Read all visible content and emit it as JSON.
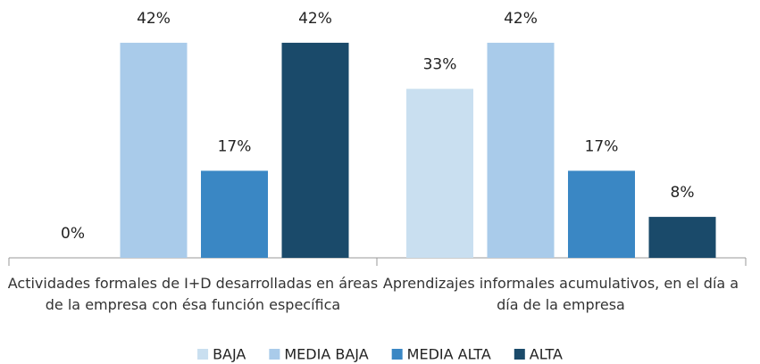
{
  "chart_data": {
    "type": "bar",
    "categories": [
      "Actividades formales de I+D desarrolladas en áreas de la empresa con ésa función específica",
      "Aprendizajes informales acumulativos, en el día a día de la empresa"
    ],
    "series": [
      {
        "name": "BAJA",
        "color": "#c9dff0",
        "values": [
          0,
          33
        ],
        "value_labels": [
          "0%",
          "33%"
        ]
      },
      {
        "name": "MEDIA BAJA",
        "color": "#a9cbea",
        "values": [
          42,
          42
        ],
        "value_labels": [
          "42%",
          "42%"
        ]
      },
      {
        "name": "MEDIA ALTA",
        "color": "#3a87c4",
        "values": [
          17,
          17
        ],
        "value_labels": [
          "17%",
          "17%"
        ]
      },
      {
        "name": "ALTA",
        "color": "#1a4a6a",
        "values": [
          42,
          8
        ],
        "value_labels": [
          "42%",
          "8%"
        ]
      }
    ],
    "legend": "bottom"
  }
}
